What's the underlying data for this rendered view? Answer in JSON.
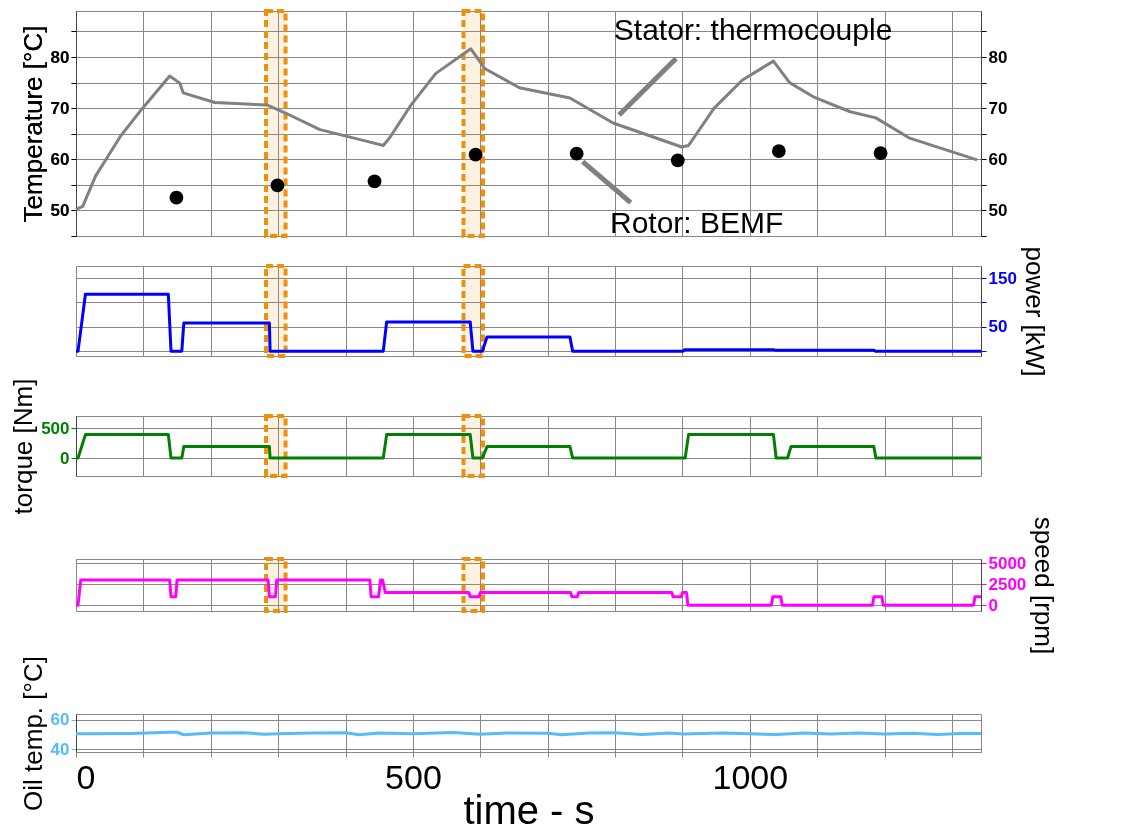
{
  "chart_data": [
    {
      "type": "line",
      "ylabel": "Temperature [°C]",
      "xlim": [
        0,
        1343
      ],
      "ylim": [
        45,
        89
      ],
      "y2lim": [
        45,
        89
      ],
      "grid": true,
      "tick_labels": "y",
      "xticks": [
        0,
        {
          "value": 100,
          "label": null
        },
        {
          "value": 200,
          "label": null
        },
        {
          "value": 300,
          "label": null
        },
        {
          "value": 400,
          "label": null
        },
        500,
        {
          "value": 600,
          "label": null
        },
        {
          "value": 700,
          "label": null
        },
        {
          "value": 800,
          "label": null
        },
        {
          "value": 900,
          "label": null
        },
        1000,
        {
          "value": 1100,
          "label": null
        },
        {
          "value": 1200,
          "label": null
        },
        {
          "value": 1300,
          "label": null
        }
      ],
      "yticks": [
        {
          "value": 45,
          "label": null
        },
        50,
        {
          "value": 55,
          "label": null
        },
        60,
        {
          "value": 65,
          "label": null
        },
        70,
        {
          "value": 75,
          "label": null
        },
        80,
        {
          "value": 85,
          "label": null
        }
      ],
      "y2ticks": [
        {
          "value": 45,
          "label": null
        },
        50,
        {
          "value": 55,
          "label": null
        },
        60,
        {
          "value": 65,
          "label": null
        },
        70,
        {
          "value": 75,
          "label": null
        },
        80,
        {
          "value": 85,
          "label": null
        }
      ],
      "series": [
        {
          "color": "#808080",
          "x": [
            0,
            10,
            29,
            66,
            97,
            139,
            154,
            159,
            206,
            284,
            310,
            362,
            435,
            456,
            466,
            497,
            534,
            586,
            607,
            658,
            733,
            797,
            899,
            909,
            947,
            989,
            1035,
            1059,
            1096,
            1149,
            1187,
            1236,
            1337
          ],
          "values": [
            50.2,
            50.8,
            56.7,
            64.5,
            69.7,
            76.3,
            74.9,
            73.0,
            71.1,
            70.6,
            69.1,
            65.8,
            63.4,
            62.7,
            64.3,
            70.6,
            76.8,
            81.6,
            77.7,
            74.0,
            72.0,
            67.1,
            62.4,
            62.7,
            70.0,
            75.5,
            79.2,
            75.0,
            72.1,
            69.3,
            68.1,
            64.2,
            59.9
          ]
        },
        {
          "type": "scatter",
          "marker": "circle",
          "color": "#000000",
          "x": [
            149,
            299,
            443,
            593,
            743,
            893,
            1043,
            1194
          ],
          "values": [
            52.5,
            54.9,
            55.7,
            60.9,
            61.1,
            59.8,
            61.6,
            61.2
          ]
        }
      ],
      "bands": [
        {
          "axis": "x",
          "from": 282,
          "to": 311,
          "color": "#f0900a"
        },
        {
          "axis": "x",
          "from": 575,
          "to": 604,
          "color": "#f0900a"
        }
      ],
      "annotations": [
        {
          "text": "Stator: thermocouple",
          "x": 797,
          "y": 67.1
        },
        {
          "text": "Rotor: BEMF",
          "x": 743,
          "y": 61.1
        }
      ]
    },
    {
      "type": "line",
      "y2label": "power [kW]",
      "xlim": [
        0,
        1343
      ],
      "y2lim": [
        -10,
        175
      ],
      "grid": true,
      "tick_labels": "y",
      "xticks": [
        0,
        {
          "value": 100,
          "label": null
        },
        {
          "value": 200,
          "label": null
        },
        {
          "value": 300,
          "label": null
        },
        {
          "value": 400,
          "label": null
        },
        500,
        {
          "value": 600,
          "label": null
        },
        {
          "value": 700,
          "label": null
        },
        {
          "value": 800,
          "label": null
        },
        {
          "value": 900,
          "label": null
        },
        1000,
        {
          "value": 1100,
          "label": null
        },
        {
          "value": 1200,
          "label": null
        },
        {
          "value": 1300,
          "label": null
        }
      ],
      "y2ticks": [
        {
          "value": 0,
          "label": null
        },
        50,
        {
          "value": 100,
          "label": null
        },
        150
      ],
      "series": [
        {
          "axis": "y2",
          "color": "#0000ff",
          "x": [
            0,
            3,
            14,
            137,
            141,
            157,
            160,
            287,
            288,
            456,
            461,
            585,
            589,
            603,
            610,
            733,
            737,
            901,
            903,
            1035,
            1037,
            1184,
            1186,
            1343
          ],
          "values": [
            0,
            0,
            117,
            117,
            0,
            0,
            58,
            58,
            0,
            0,
            60,
            60,
            0,
            0,
            29,
            29,
            0,
            0,
            3,
            3,
            2,
            2,
            0,
            0
          ]
        }
      ],
      "bands": [
        {
          "axis": "x",
          "from": 282,
          "to": 311,
          "color": "#f0900a"
        },
        {
          "axis": "x",
          "from": 575,
          "to": 604,
          "color": "#f0900a"
        }
      ]
    },
    {
      "type": "line",
      "ylabel": "torque [Nm]",
      "xlim": [
        0,
        1343
      ],
      "ylim": [
        -300,
        700
      ],
      "grid": true,
      "tick_labels": "y",
      "xticks": [
        0,
        {
          "value": 100,
          "label": null
        },
        {
          "value": 200,
          "label": null
        },
        {
          "value": 300,
          "label": null
        },
        {
          "value": 400,
          "label": null
        },
        500,
        {
          "value": 600,
          "label": null
        },
        {
          "value": 700,
          "label": null
        },
        {
          "value": 800,
          "label": null
        },
        {
          "value": 900,
          "label": null
        },
        1000,
        {
          "value": 1100,
          "label": null
        },
        {
          "value": 1200,
          "label": null
        },
        {
          "value": 1300,
          "label": null
        }
      ],
      "yticks": [
        0,
        500
      ],
      "series": [
        {
          "color": "#008000",
          "x": [
            0,
            3,
            14,
            137,
            141,
            157,
            160,
            287,
            288,
            456,
            461,
            585,
            589,
            603,
            610,
            733,
            737,
            904,
            909,
            1035,
            1039,
            1056,
            1061,
            1184,
            1187,
            1343
          ],
          "values": [
            0,
            0,
            390,
            390,
            0,
            0,
            190,
            190,
            0,
            0,
            390,
            390,
            0,
            0,
            190,
            190,
            0,
            0,
            390,
            390,
            0,
            0,
            190,
            190,
            0,
            0
          ]
        }
      ],
      "bands": [
        {
          "axis": "x",
          "from": 282,
          "to": 311,
          "color": "#f0900a"
        },
        {
          "axis": "x",
          "from": 575,
          "to": 604,
          "color": "#f0900a"
        }
      ]
    },
    {
      "type": "line",
      "y2label": "speed [rpm]",
      "xlim": [
        0,
        1343
      ],
      "y2lim": [
        -700,
        5500
      ],
      "grid": true,
      "tick_labels": "y",
      "xticks": [
        0,
        {
          "value": 100,
          "label": null
        },
        {
          "value": 200,
          "label": null
        },
        {
          "value": 300,
          "label": null
        },
        {
          "value": 400,
          "label": null
        },
        500,
        {
          "value": 600,
          "label": null
        },
        {
          "value": 700,
          "label": null
        },
        {
          "value": 800,
          "label": null
        },
        {
          "value": 900,
          "label": null
        },
        1000,
        {
          "value": 1100,
          "label": null
        },
        {
          "value": 1200,
          "label": null
        },
        {
          "value": 1300,
          "label": null
        }
      ],
      "y2ticks": [
        0,
        2500,
        5000
      ],
      "series": [
        {
          "axis": "y2",
          "color": "#ff00ff",
          "x": [
            0,
            3,
            7,
            139,
            141,
            148,
            150,
            285,
            287,
            296,
            298,
            436,
            438,
            449,
            452,
            455,
            459,
            583,
            585,
            598,
            600,
            734,
            736,
            744,
            746,
            884,
            886,
            898,
            900,
            906,
            908,
            1032,
            1034,
            1046,
            1048,
            1182,
            1184,
            1196,
            1198,
            1332,
            1334,
            1343
          ],
          "values": [
            0,
            0,
            3000,
            3000,
            1000,
            1000,
            3000,
            3000,
            1000,
            1000,
            3000,
            3000,
            1000,
            1000,
            3000,
            3000,
            1500,
            1500,
            1000,
            1000,
            1500,
            1500,
            1000,
            1000,
            1500,
            1500,
            1000,
            1000,
            1500,
            1500,
            0,
            0,
            1000,
            1000,
            0,
            0,
            1000,
            1000,
            0,
            0,
            1000,
            1000
          ]
        }
      ],
      "bands": [
        {
          "axis": "x",
          "from": 282,
          "to": 311,
          "color": "#f0900a"
        },
        {
          "axis": "x",
          "from": 575,
          "to": 604,
          "color": "#f0900a"
        }
      ]
    },
    {
      "type": "line",
      "ylabel": "Oil temp. [°C]",
      "xlabel": "time - s",
      "xlim": [
        0,
        1343
      ],
      "ylim": [
        38,
        64
      ],
      "grid": true,
      "xticks": [
        0,
        {
          "value": 100,
          "label": null
        },
        {
          "value": 200,
          "label": null
        },
        {
          "value": 300,
          "label": null
        },
        {
          "value": 400,
          "label": null
        },
        500,
        {
          "value": 600,
          "label": null
        },
        {
          "value": 700,
          "label": null
        },
        {
          "value": 800,
          "label": null
        },
        {
          "value": 900,
          "label": null
        },
        1000,
        {
          "value": 1100,
          "label": null
        },
        {
          "value": 1200,
          "label": null
        },
        {
          "value": 1300,
          "label": null
        }
      ],
      "yticks": [
        40,
        60
      ],
      "series": [
        {
          "color": "#55bbff",
          "x": [
            0,
            20,
            80,
            140,
            150,
            160,
            200,
            250,
            280,
            300,
            350,
            400,
            420,
            450,
            500,
            560,
            600,
            640,
            700,
            720,
            760,
            800,
            840,
            880,
            900,
            960,
            1000,
            1040,
            1080,
            1120,
            1160,
            1200,
            1240,
            1280,
            1320,
            1343
          ],
          "values": [
            50.5,
            50.5,
            50.7,
            51.5,
            51.5,
            49.8,
            51.0,
            51.2,
            50.2,
            50.5,
            51.0,
            51.2,
            49.8,
            51.0,
            50.5,
            51.3,
            50.2,
            51.0,
            50.8,
            49.8,
            51.0,
            51.2,
            49.9,
            51.0,
            50.3,
            51.0,
            50.5,
            49.9,
            51.0,
            50.4,
            51.0,
            50.3,
            50.8,
            49.9,
            50.8,
            50.6
          ]
        }
      ]
    }
  ]
}
